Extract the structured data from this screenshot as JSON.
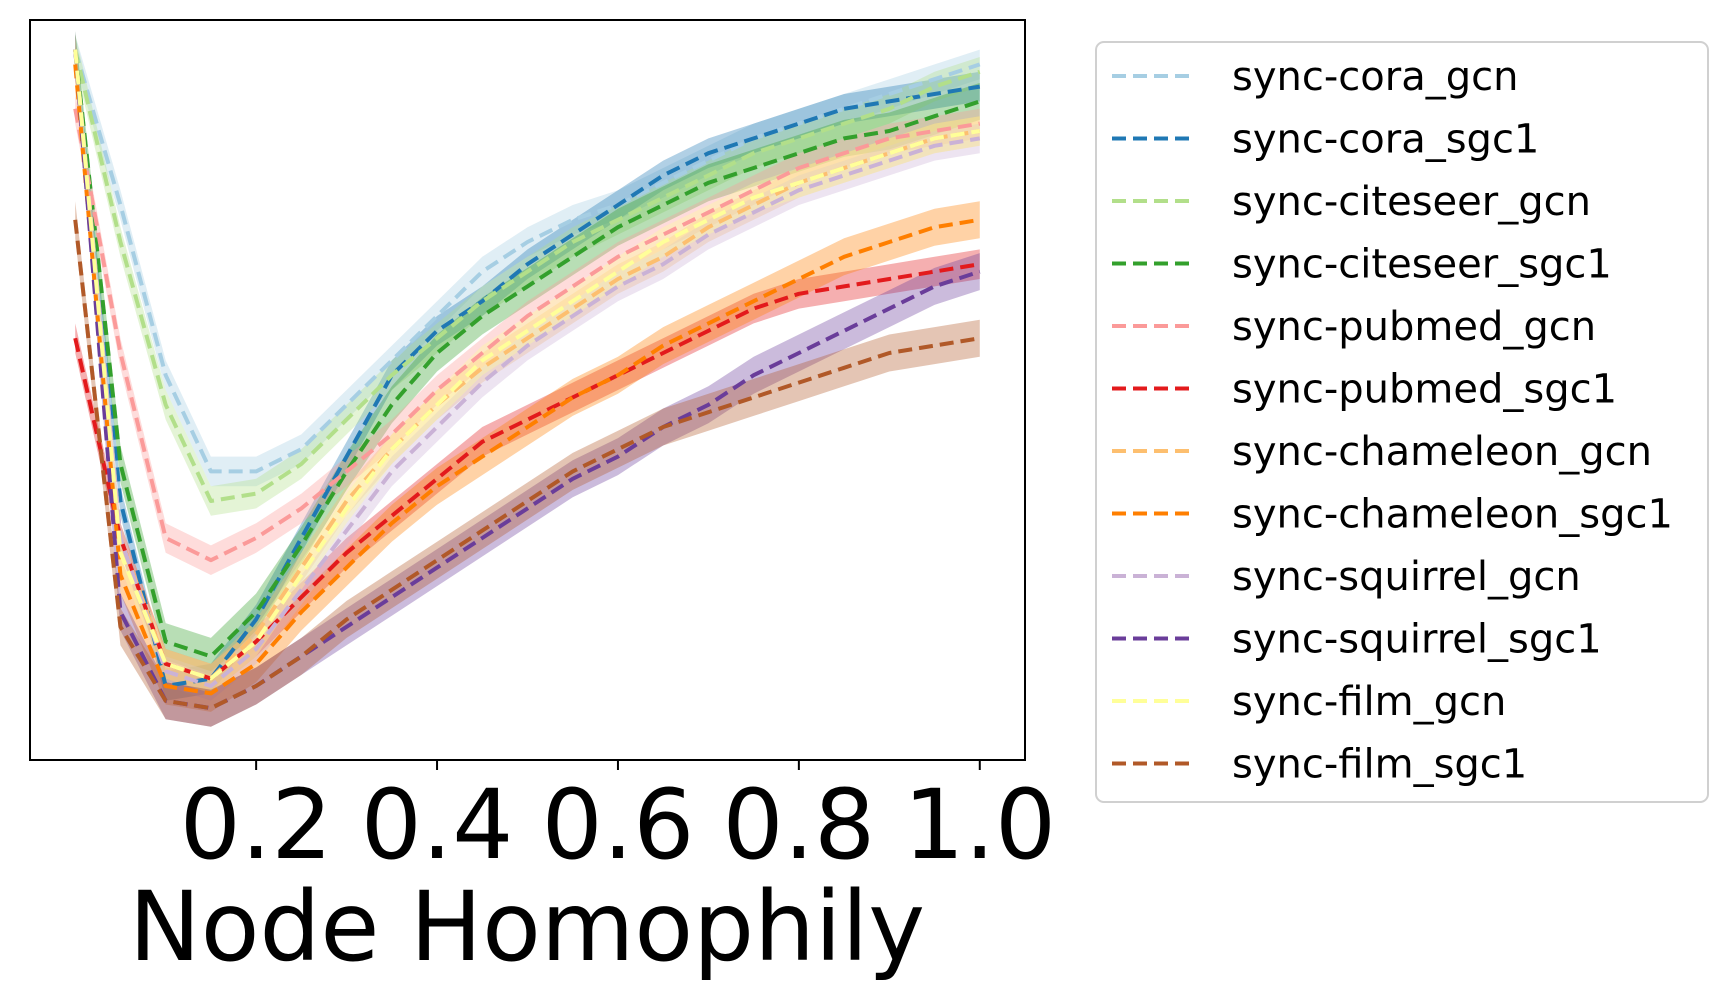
{
  "chart_data": {
    "type": "line",
    "title": "",
    "xlabel": "Node Homophily",
    "ylabel": "",
    "xlim": [
      -0.05,
      1.05
    ],
    "xticks": [
      0.2,
      0.4,
      0.6,
      0.8,
      1.0
    ],
    "xtick_labels": [
      "0.2",
      "0.4",
      "0.6",
      "0.8",
      "1.0"
    ],
    "yticks_shown": false,
    "ylim": [
      0,
      1
    ],
    "grid": false,
    "legend_placement": "outside-right",
    "line_style": "dashed",
    "band": "shaded band around each line",
    "x": [
      0.0,
      0.05,
      0.1,
      0.15,
      0.2,
      0.25,
      0.3,
      0.35,
      0.4,
      0.45,
      0.5,
      0.55,
      0.6,
      0.65,
      0.7,
      0.75,
      0.8,
      0.85,
      0.9,
      0.95,
      1.0
    ],
    "series": [
      {
        "name": "sync-cora_gcn",
        "color": "#a6cee3",
        "band": 0.02,
        "values": [
          0.96,
          0.75,
          0.52,
          0.39,
          0.39,
          0.42,
          0.48,
          0.54,
          0.6,
          0.66,
          0.7,
          0.73,
          0.75,
          0.78,
          0.81,
          0.84,
          0.86,
          0.88,
          0.9,
          0.92,
          0.94
        ]
      },
      {
        "name": "sync-cora_sgc1",
        "color": "#1f78b4",
        "band": 0.02,
        "values": [
          0.96,
          0.35,
          0.1,
          0.11,
          0.19,
          0.3,
          0.41,
          0.52,
          0.58,
          0.62,
          0.67,
          0.71,
          0.75,
          0.79,
          0.82,
          0.84,
          0.86,
          0.88,
          0.89,
          0.9,
          0.91
        ]
      },
      {
        "name": "sync-citeseer_gcn",
        "color": "#b2df8a",
        "band": 0.02,
        "values": [
          0.96,
          0.7,
          0.48,
          0.35,
          0.36,
          0.4,
          0.46,
          0.52,
          0.57,
          0.62,
          0.66,
          0.7,
          0.73,
          0.76,
          0.79,
          0.82,
          0.84,
          0.86,
          0.88,
          0.91,
          0.93
        ]
      },
      {
        "name": "sync-citeseer_sgc1",
        "color": "#33a02c",
        "band": 0.025,
        "values": [
          0.96,
          0.4,
          0.16,
          0.14,
          0.2,
          0.29,
          0.39,
          0.48,
          0.55,
          0.6,
          0.64,
          0.68,
          0.72,
          0.75,
          0.78,
          0.8,
          0.82,
          0.84,
          0.85,
          0.87,
          0.89
        ]
      },
      {
        "name": "sync-pubmed_gcn",
        "color": "#fb9a99",
        "band": 0.02,
        "values": [
          0.88,
          0.55,
          0.3,
          0.27,
          0.3,
          0.34,
          0.39,
          0.44,
          0.5,
          0.55,
          0.6,
          0.64,
          0.68,
          0.71,
          0.74,
          0.77,
          0.8,
          0.82,
          0.84,
          0.85,
          0.86
        ]
      },
      {
        "name": "sync-pubmed_sgc1",
        "color": "#e31a1c",
        "band": 0.02,
        "values": [
          0.57,
          0.3,
          0.13,
          0.11,
          0.16,
          0.22,
          0.28,
          0.33,
          0.38,
          0.43,
          0.46,
          0.49,
          0.52,
          0.55,
          0.58,
          0.61,
          0.63,
          0.64,
          0.65,
          0.66,
          0.67
        ]
      },
      {
        "name": "sync-chameleon_gcn",
        "color": "#fdbf6f",
        "band": 0.02,
        "values": [
          0.96,
          0.3,
          0.13,
          0.11,
          0.17,
          0.26,
          0.35,
          0.42,
          0.48,
          0.53,
          0.57,
          0.61,
          0.65,
          0.68,
          0.72,
          0.75,
          0.78,
          0.8,
          0.82,
          0.84,
          0.85
        ]
      },
      {
        "name": "sync-chameleon_sgc1",
        "color": "#ff7f00",
        "band": 0.025,
        "values": [
          0.94,
          0.25,
          0.1,
          0.09,
          0.13,
          0.2,
          0.26,
          0.32,
          0.37,
          0.41,
          0.45,
          0.49,
          0.52,
          0.56,
          0.59,
          0.62,
          0.65,
          0.68,
          0.7,
          0.72,
          0.73
        ]
      },
      {
        "name": "sync-squirrel_gcn",
        "color": "#cab2d6",
        "band": 0.02,
        "values": [
          0.96,
          0.3,
          0.12,
          0.1,
          0.15,
          0.23,
          0.31,
          0.39,
          0.45,
          0.51,
          0.56,
          0.6,
          0.64,
          0.67,
          0.71,
          0.74,
          0.77,
          0.79,
          0.81,
          0.83,
          0.84
        ]
      },
      {
        "name": "sync-squirrel_sgc1",
        "color": "#6a3d9a",
        "band": 0.025,
        "values": [
          0.96,
          0.2,
          0.08,
          0.07,
          0.1,
          0.14,
          0.18,
          0.22,
          0.26,
          0.3,
          0.34,
          0.38,
          0.41,
          0.45,
          0.48,
          0.52,
          0.55,
          0.58,
          0.61,
          0.64,
          0.66
        ]
      },
      {
        "name": "sync-film_gcn",
        "color": "#ffff99",
        "band": 0.02,
        "values": [
          0.96,
          0.28,
          0.13,
          0.11,
          0.16,
          0.25,
          0.34,
          0.42,
          0.48,
          0.54,
          0.58,
          0.62,
          0.66,
          0.7,
          0.73,
          0.76,
          0.78,
          0.8,
          0.82,
          0.84,
          0.85
        ]
      },
      {
        "name": "sync-film_sgc1",
        "color": "#b15928",
        "band": 0.025,
        "values": [
          0.73,
          0.18,
          0.08,
          0.07,
          0.1,
          0.14,
          0.19,
          0.23,
          0.27,
          0.31,
          0.35,
          0.39,
          0.42,
          0.45,
          0.47,
          0.49,
          0.51,
          0.53,
          0.55,
          0.56,
          0.57
        ]
      }
    ]
  }
}
